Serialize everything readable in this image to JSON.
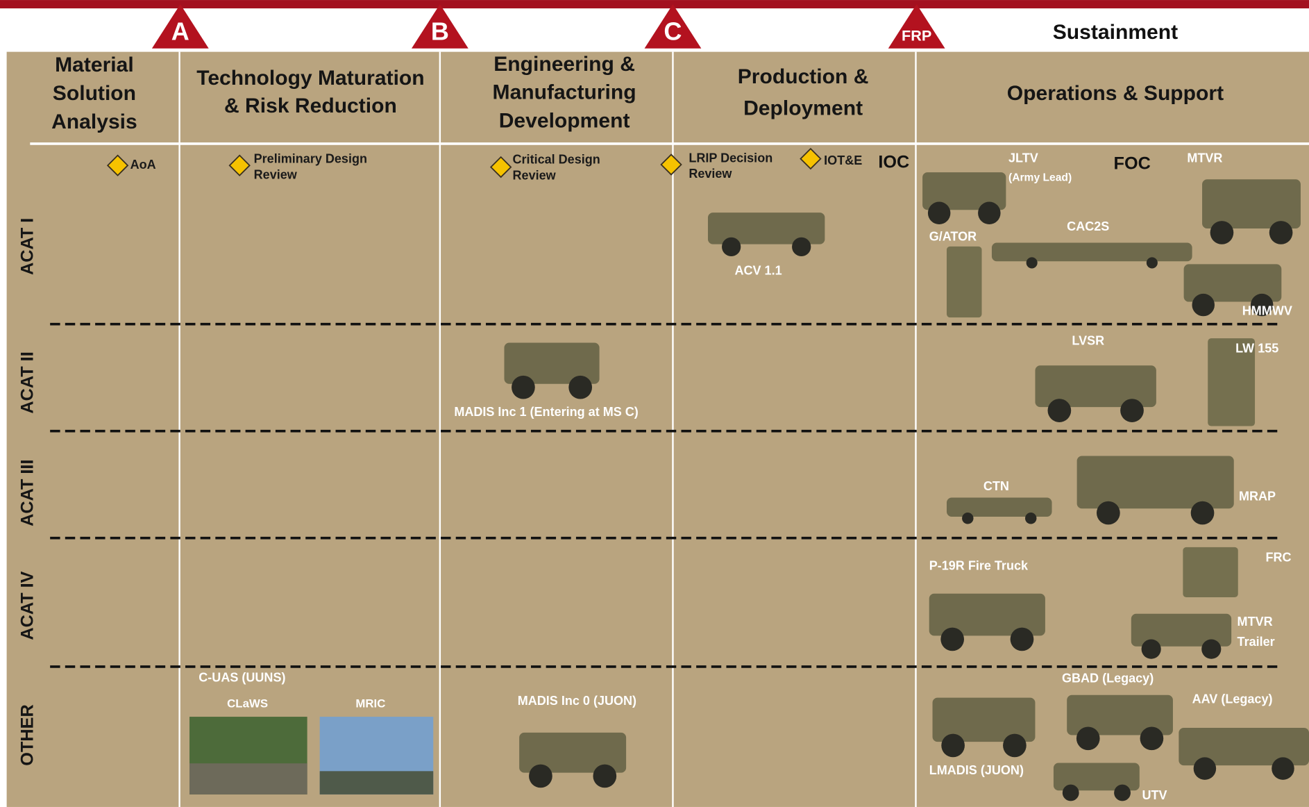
{
  "milestones": [
    "A",
    "B",
    "C",
    "FRP"
  ],
  "sustainment": "Sustainment",
  "phases": [
    [
      "Material",
      "Solution",
      "Analysis"
    ],
    [
      "Technology Maturation",
      "& Risk Reduction"
    ],
    [
      "Engineering &",
      "Manufacturing",
      "Development"
    ],
    [
      "Production &",
      "Deployment"
    ],
    [
      "Operations &  Support"
    ]
  ],
  "rows": [
    "ACAT I",
    "ACAT II",
    "ACAT III",
    "ACAT IV",
    "OTHER"
  ],
  "events": [
    [
      "AoA"
    ],
    [
      "Preliminary Design",
      "Review"
    ],
    [
      "Critical Design",
      "Review"
    ],
    [
      "LRIP Decision",
      "Review"
    ],
    [
      "IOT&E"
    ]
  ],
  "markers": [
    "IOC",
    "FOC"
  ],
  "programs": [
    [
      "JLTV",
      "(Army Lead)"
    ],
    [
      "MTVR"
    ],
    [
      "G/ATOR"
    ],
    [
      "CAC2S"
    ],
    [
      "HMMWV"
    ],
    [
      "ACV 1.1"
    ],
    [
      "MADIS Inc 1 (Entering at MS C)"
    ],
    [
      "LVSR"
    ],
    [
      "LW 155"
    ],
    [
      "CTN"
    ],
    [
      "MRAP"
    ],
    [
      "P-19R Fire  Truck"
    ],
    [
      "FRC"
    ],
    [
      "MTVR",
      "Trailer"
    ],
    [
      "C-UAS (UUNS)"
    ],
    [
      "CLaWS"
    ],
    [
      "MRIC"
    ],
    [
      "MADIS Inc 0 (JUON)"
    ],
    [
      "GBAD (Legacy)"
    ],
    [
      "AAV (Legacy)"
    ],
    [
      "LMADIS (JUON)"
    ],
    [
      "UTV"
    ]
  ]
}
